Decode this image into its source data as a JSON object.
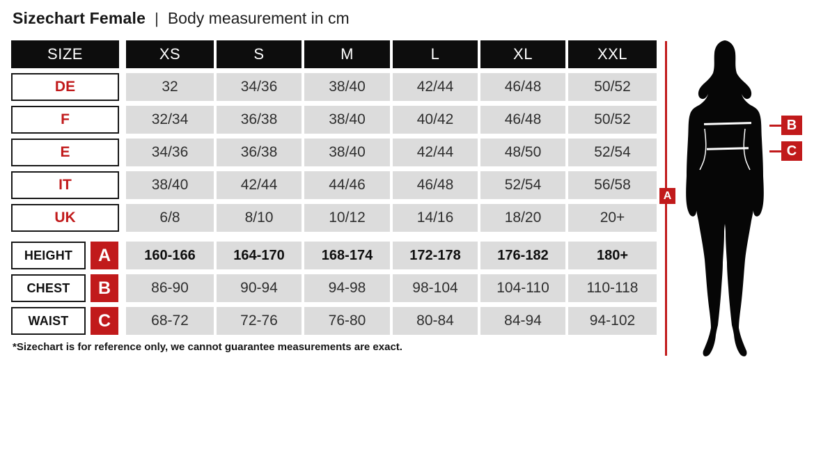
{
  "header": {
    "title": "Sizechart Female",
    "separator": "|",
    "subtitle": "Body measurement in cm"
  },
  "chart_data": {
    "type": "table",
    "title": "Sizechart Female",
    "subtitle": "Body measurement in cm",
    "columns": [
      "SIZE",
      "XS",
      "S",
      "M",
      "L",
      "XL",
      "XXL"
    ],
    "size_rows": [
      {
        "label": "DE",
        "values": [
          "32",
          "34/36",
          "38/40",
          "42/44",
          "46/48",
          "50/52"
        ]
      },
      {
        "label": "F",
        "values": [
          "32/34",
          "36/38",
          "38/40",
          "40/42",
          "46/48",
          "50/52"
        ]
      },
      {
        "label": "E",
        "values": [
          "34/36",
          "36/38",
          "38/40",
          "42/44",
          "48/50",
          "52/54"
        ]
      },
      {
        "label": "IT",
        "values": [
          "38/40",
          "42/44",
          "44/46",
          "46/48",
          "52/54",
          "56/58"
        ]
      },
      {
        "label": "UK",
        "values": [
          "6/8",
          "8/10",
          "10/12",
          "14/16",
          "18/20",
          "20+"
        ]
      }
    ],
    "measurement_rows": [
      {
        "label": "HEIGHT",
        "marker": "A",
        "bold": true,
        "values": [
          "160-166",
          "164-170",
          "168-174",
          "172-178",
          "176-182",
          "180+"
        ]
      },
      {
        "label": "CHEST",
        "marker": "B",
        "bold": false,
        "values": [
          "86-90",
          "90-94",
          "94-98",
          "98-104",
          "104-110",
          "110-118"
        ]
      },
      {
        "label": "WAIST",
        "marker": "C",
        "bold": false,
        "values": [
          "68-72",
          "72-76",
          "76-80",
          "80-84",
          "84-94",
          "94-102"
        ]
      }
    ]
  },
  "annotations": {
    "height_marker": "A",
    "chest_marker": "B",
    "waist_marker": "C"
  },
  "footnote": "*Sizechart is for reference only, we cannot guarantee measurements are exact.",
  "colors": {
    "accent_red": "#c11a1b",
    "header_bg": "#0d0d0d",
    "cell_bg": "#dcdcdc"
  }
}
